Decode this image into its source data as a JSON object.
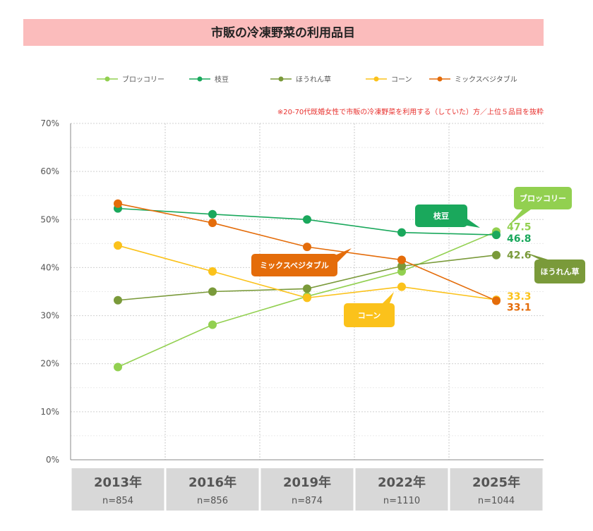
{
  "chart_data": {
    "type": "line",
    "title": "市販の冷凍野菜の利用品目",
    "note": "※20-70代既婚女性で市販の冷凍野菜を利用する（していた）方／上位５品目を抜粋",
    "categories": [
      "2013年",
      "2016年",
      "2019年",
      "2022年",
      "2025年"
    ],
    "sample_sizes": [
      "n=854",
      "n=856",
      "n=874",
      "n=1110",
      "n=1044"
    ],
    "ylim": [
      0,
      70
    ],
    "yticks": [
      "0%",
      "10%",
      "20%",
      "30%",
      "40%",
      "50%",
      "60%",
      "70%"
    ],
    "grid": true,
    "legend_position": "top",
    "series": [
      {
        "name": "ブロッコリー",
        "color": "#92d050",
        "values": [
          19.3,
          28.1,
          34.0,
          39.2,
          47.5
        ],
        "end_label": "47.5",
        "callout": "ブロッコリー"
      },
      {
        "name": "枝豆",
        "color": "#1aa85c",
        "values": [
          52.3,
          51.1,
          50.0,
          47.3,
          46.8
        ],
        "end_label": "46.8",
        "callout": "枝豆"
      },
      {
        "name": "ほうれん草",
        "color": "#7a9a3a",
        "values": [
          33.2,
          35.0,
          35.6,
          40.3,
          42.6
        ],
        "end_label": "42.6",
        "callout": "ほうれん草"
      },
      {
        "name": "コーン",
        "color": "#fbc21b",
        "values": [
          44.6,
          39.2,
          33.7,
          36.0,
          33.3
        ],
        "end_label": "33.3",
        "callout": "コーン"
      },
      {
        "name": "ミックスベジタブル",
        "color": "#e46c0a",
        "values": [
          53.3,
          49.3,
          44.3,
          41.6,
          33.1
        ],
        "end_label": "33.1",
        "callout": "ミックスベジタブル"
      }
    ]
  }
}
